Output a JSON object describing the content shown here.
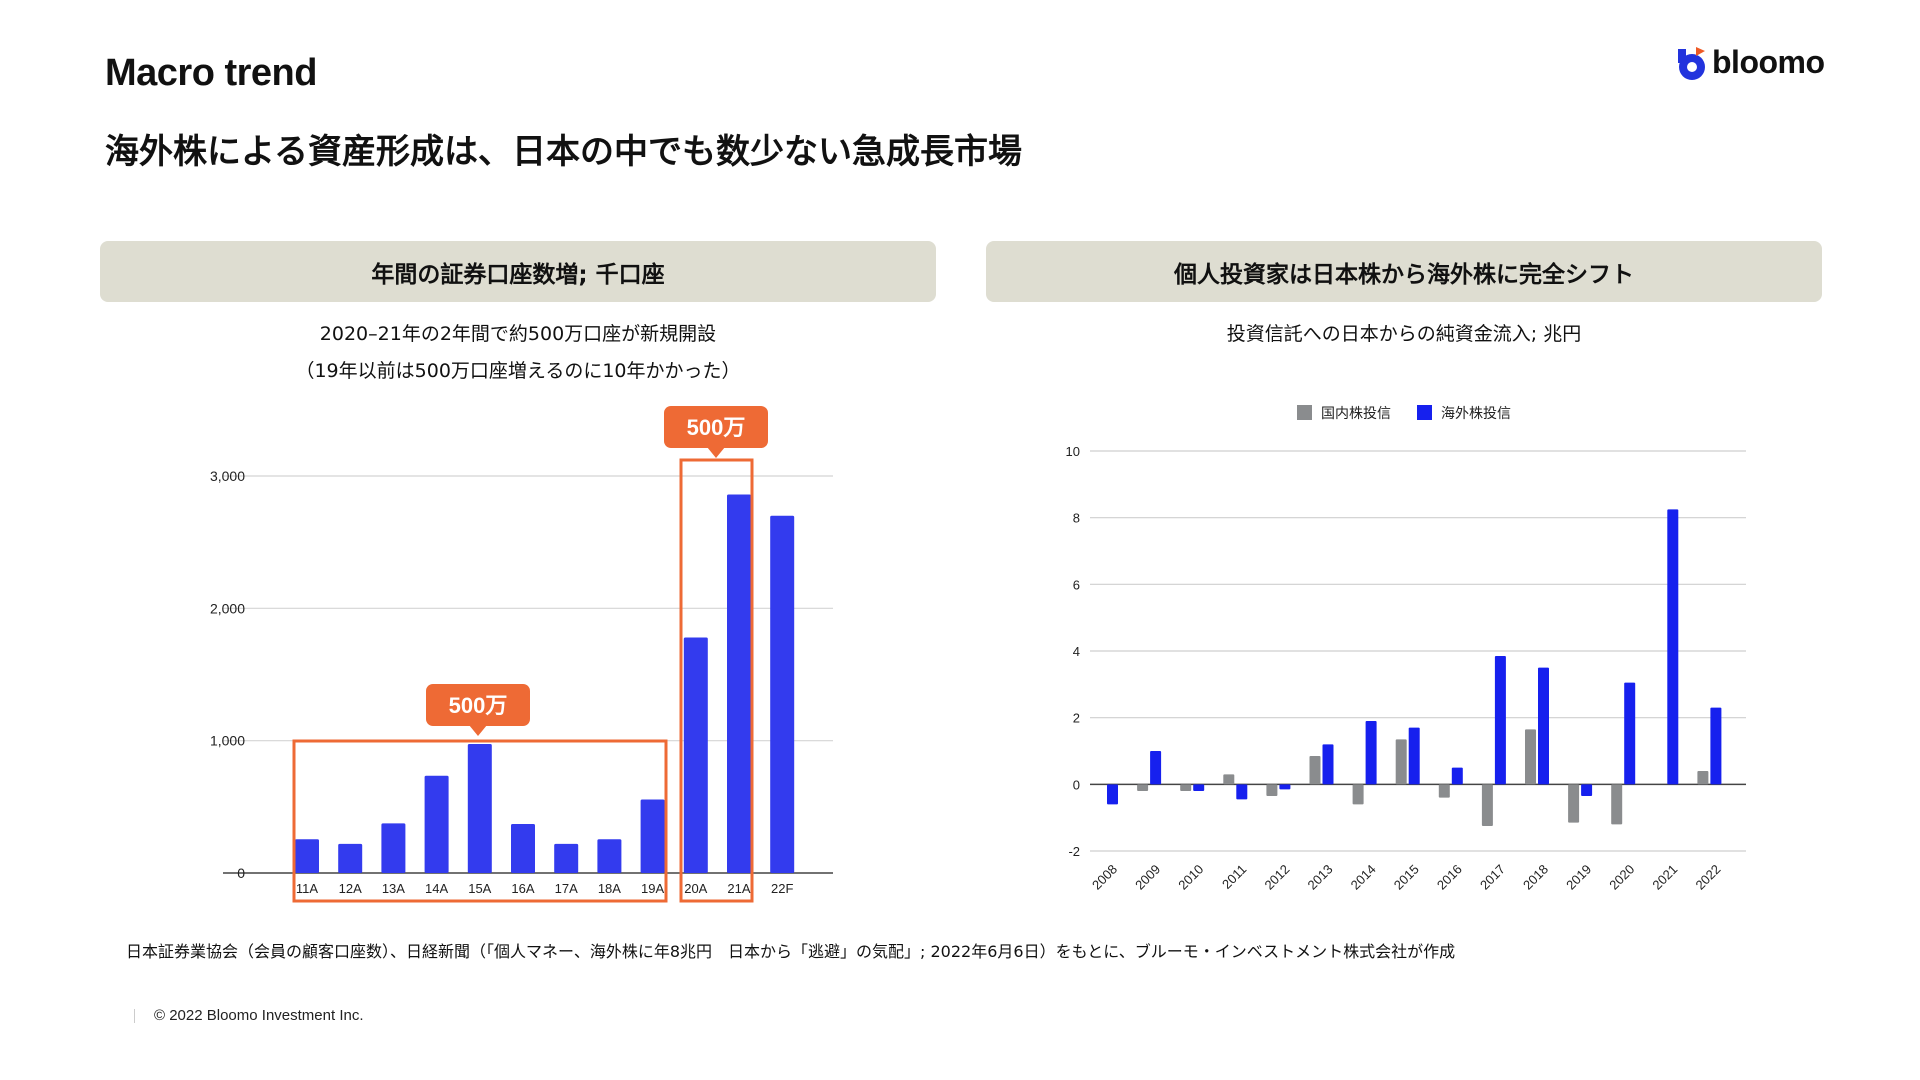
{
  "header": {
    "title": "Macro trend",
    "subtitle": "海外株による資産形成は、日本の中でも数少ない急成長市場",
    "logo_text": "bloomo"
  },
  "left_panel": {
    "heading": "年間の証券口座数増; 千口座",
    "caption_line1": "2020–21年の2年間で約500万口座が新規開設",
    "caption_line2": "（19年以前は500万口座増えるのに10年かかった）",
    "callouts": [
      "500万",
      "500万"
    ]
  },
  "right_panel": {
    "heading": "個人投資家は日本株から海外株に完全シフト",
    "caption": "投資信託への日本からの純資金流入; 兆円"
  },
  "chart_data": [
    {
      "type": "bar",
      "title": "年間の証券口座数増; 千口座",
      "categories": [
        "11A",
        "12A",
        "13A",
        "14A",
        "15A",
        "16A",
        "17A",
        "18A",
        "19A",
        "20A",
        "21A",
        "22F"
      ],
      "values": [
        255,
        220,
        375,
        735,
        975,
        370,
        220,
        255,
        555,
        1780,
        2860,
        2700
      ],
      "yticks": [
        "0",
        "1,000",
        "2,000",
        "3,000"
      ],
      "ylim": [
        0,
        3000
      ],
      "color": "#333bee",
      "highlight_color": "#ee6a35"
    },
    {
      "type": "bar",
      "title": "投資信託への日本からの純資金流入; 兆円",
      "categories": [
        "2008",
        "2009",
        "2010",
        "2011",
        "2012",
        "2013",
        "2014",
        "2015",
        "2016",
        "2017",
        "2018",
        "2019",
        "2020",
        "2021",
        "2022"
      ],
      "series": [
        {
          "name": "国内株投信",
          "color": "#8a8c8e",
          "values": [
            0,
            -0.2,
            -0.2,
            0.3,
            -0.35,
            0.85,
            -0.6,
            1.35,
            -0.4,
            -1.25,
            1.65,
            -1.15,
            -1.2,
            0,
            0.4
          ]
        },
        {
          "name": "海外株投信",
          "color": "#1620ee",
          "values": [
            -0.6,
            1.0,
            -0.2,
            -0.45,
            -0.15,
            1.2,
            1.9,
            1.7,
            0.5,
            3.85,
            3.5,
            -0.35,
            3.05,
            8.25,
            2.3
          ]
        }
      ],
      "yticks": [
        "-2",
        "0",
        "2",
        "4",
        "6",
        "8",
        "10"
      ],
      "ylim": [
        -2,
        10
      ],
      "legend": "top-center"
    }
  ],
  "footer": {
    "source": "日本証券業協会（会員の顧客口座数）、日経新聞（「個人マネー、海外株に年8兆円　日本から「逃避」の気配」; 2022年6月6日）をもとに、ブルーモ・インベストメント株式会社が作成",
    "copyright": "© 2022 Bloomo Investment Inc."
  }
}
